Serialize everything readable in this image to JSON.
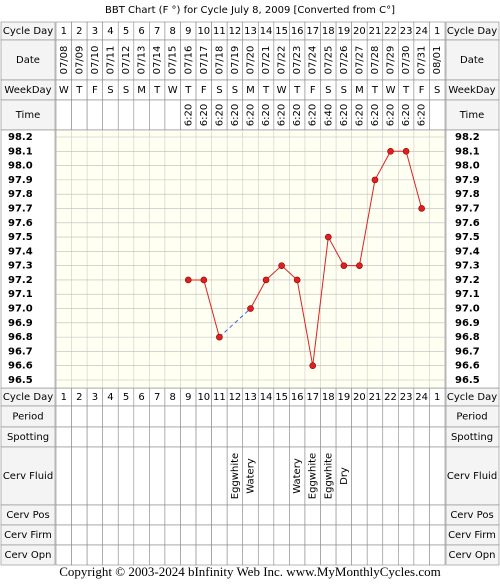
{
  "title": "BBT Chart (F °) for Cycle July 8, 2009  [Converted from C°]",
  "row_labels": {
    "cycle_day": "Cycle Day",
    "date": "Date",
    "weekday": "WeekDay",
    "time": "Time",
    "period": "Period",
    "spotting": "Spotting",
    "cerv_fluid": "Cerv Fluid",
    "cerv_pos": "Cerv Pos",
    "cerv_firm": "Cerv Firm",
    "cerv_opn": "Cerv Opn"
  },
  "cycle_days": [
    1,
    2,
    3,
    4,
    5,
    6,
    7,
    8,
    9,
    10,
    11,
    12,
    13,
    14,
    15,
    16,
    17,
    18,
    19,
    20,
    21,
    22,
    23,
    24,
    1
  ],
  "weekdays": [
    "W",
    "T",
    "F",
    "S",
    "S",
    "M",
    "T",
    "W",
    "T",
    "F",
    "S",
    "S",
    "M",
    "T",
    "W",
    "T",
    "F",
    "S",
    "S",
    "M",
    "T",
    "W",
    "T",
    "F",
    "S"
  ],
  "times": [
    null,
    null,
    null,
    null,
    null,
    null,
    null,
    null,
    "6:20",
    "6:20",
    "6:20",
    "6:20",
    "6:20",
    "6:20",
    "6:20",
    "6:20",
    "6:20",
    "6:40",
    "6:20",
    "6:20",
    "6:20",
    "6:20",
    "6:20",
    "6:20",
    null
  ],
  "cervical_fluid": [
    null,
    null,
    null,
    null,
    null,
    null,
    null,
    null,
    null,
    null,
    null,
    "Eggwhite",
    "Watery",
    null,
    null,
    "Watery",
    "Eggwhite",
    "Eggwhite",
    "Dry",
    null,
    null,
    null,
    null,
    null,
    null
  ],
  "chart_data": {
    "type": "line",
    "color": "#e02020",
    "categories": [
      "07/08",
      "07/09",
      "07/10",
      "07/11",
      "07/12",
      "07/13",
      "07/14",
      "07/15",
      "07/16",
      "07/17",
      "07/18",
      "07/19",
      "07/20",
      "07/21",
      "07/22",
      "07/23",
      "07/24",
      "07/25",
      "07/26",
      "07/27",
      "07/28",
      "07/29",
      "07/30",
      "07/31",
      "08/01"
    ],
    "values": [
      null,
      null,
      null,
      null,
      null,
      null,
      null,
      null,
      97.2,
      97.2,
      96.8,
      null,
      97.0,
      97.2,
      97.3,
      97.2,
      96.6,
      97.5,
      97.3,
      97.3,
      97.9,
      98.1,
      98.1,
      97.7,
      null
    ],
    "ylim": [
      96.5,
      98.2
    ],
    "yticks": [
      98.2,
      98.1,
      {
        "value": 98.0,
        "label": "98.0"
      },
      97.9,
      97.8,
      97.7,
      97.6,
      97.5,
      97.4,
      97.3,
      97.2,
      97.1,
      {
        "value": 97.0,
        "label": "97.0"
      },
      96.9,
      96.8,
      96.7,
      96.6,
      96.5
    ],
    "grid": true
  },
  "footer": "Copyright © 2003-2024 bInfinity Web Inc.     www.MyMonthlyCycles.com"
}
